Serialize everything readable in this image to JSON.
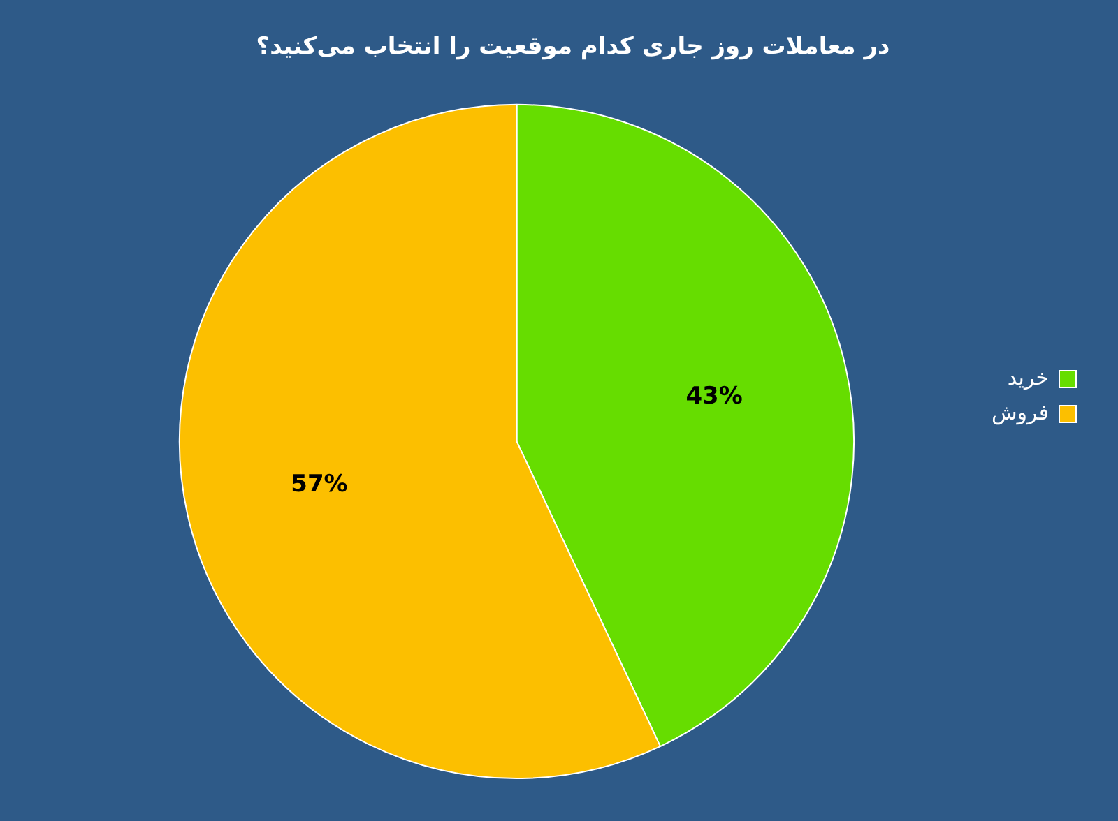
{
  "chart_data": {
    "type": "pie",
    "title": "در معاملات روز جاری کدام موقعیت را انتخاب می‌کنید؟",
    "categories": [
      "خرید",
      "فروش"
    ],
    "values": [
      43,
      57
    ],
    "colors": [
      "#66dd00",
      "#fcbf00"
    ],
    "value_labels": [
      "43%",
      "57%"
    ],
    "legend": "right"
  }
}
